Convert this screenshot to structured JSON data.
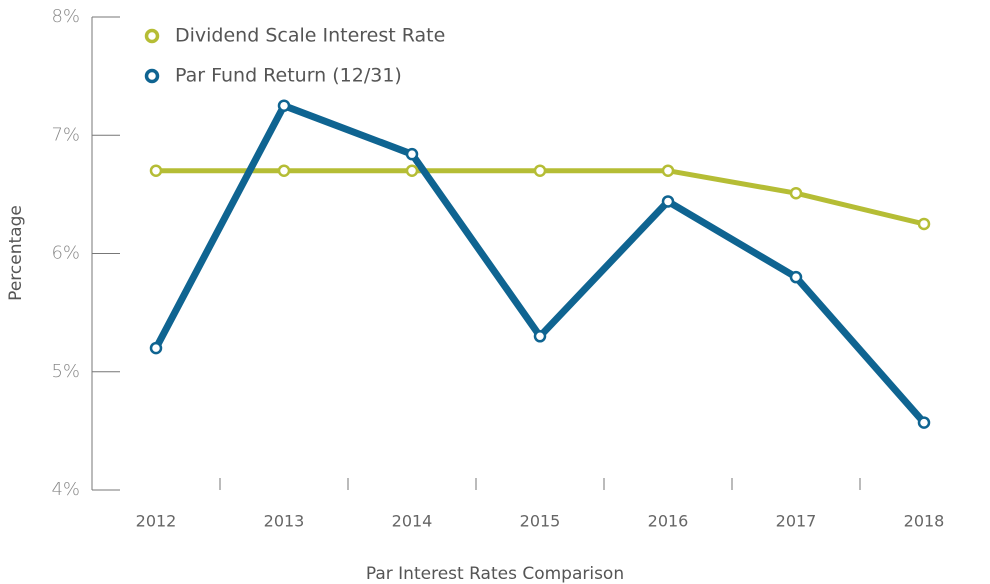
{
  "chart_data": {
    "type": "line",
    "x_label": "Par Interest Rates Comparison",
    "y_label": "Percentage",
    "categories": [
      "2012",
      "2013",
      "2014",
      "2015",
      "2016",
      "2017",
      "2018"
    ],
    "series": [
      {
        "name": "Dividend Scale Interest Rate",
        "color": "#b5bd35",
        "values": [
          6.7,
          6.7,
          6.7,
          6.7,
          6.7,
          6.51,
          6.25
        ]
      },
      {
        "name": "Par Fund Return (12/31)",
        "color": "#0f6491",
        "values": [
          5.2,
          7.25,
          6.84,
          5.3,
          6.44,
          5.8,
          4.57
        ]
      }
    ],
    "ylim": [
      4,
      8
    ],
    "yticks": [
      {
        "value": 4,
        "label": "4%"
      },
      {
        "value": 5,
        "label": "5%"
      },
      {
        "value": 6,
        "label": "6%"
      },
      {
        "value": 7,
        "label": "7%"
      },
      {
        "value": 8,
        "label": "8%"
      }
    ],
    "legend": "top-left"
  }
}
